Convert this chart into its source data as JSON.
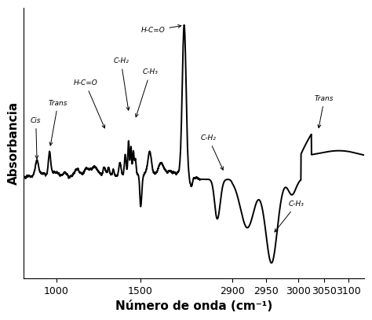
{
  "xlabel": "Número de onda (cm⁻¹)",
  "ylabel": "Absorbancia",
  "xticks": [
    1000,
    1500,
    2900,
    2950,
    3000,
    3050,
    3100
  ],
  "control_wn": [
    800,
    870,
    1000,
    1500,
    1800,
    2800,
    2850,
    2900,
    2950,
    3000,
    3050,
    3100,
    3150
  ],
  "control_virt": [
    0.0,
    0.02,
    0.09,
    0.3,
    0.455,
    0.455,
    0.49,
    0.53,
    0.615,
    0.695,
    0.76,
    0.82,
    0.87
  ]
}
